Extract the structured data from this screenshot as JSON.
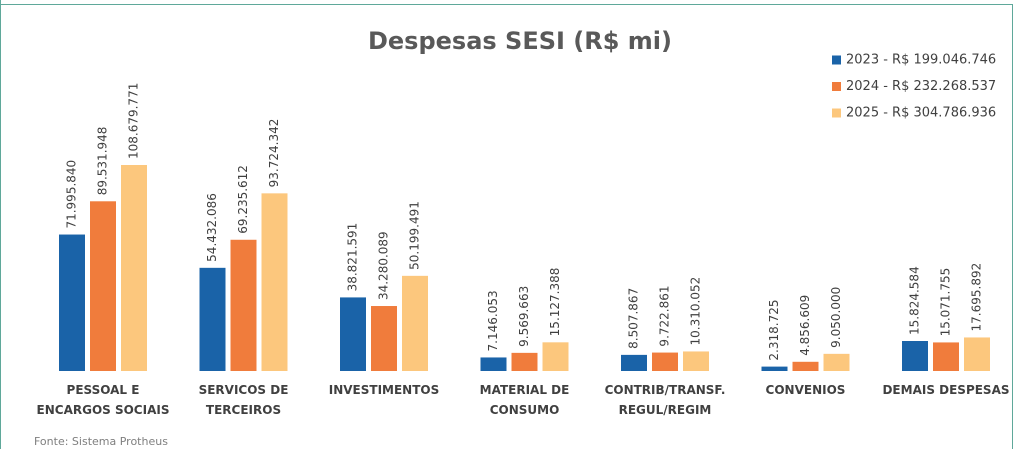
{
  "chart_data": {
    "type": "bar",
    "title": "Despesas SESI (R$ mi)",
    "source": "Fonte: Sistema Protheus",
    "categories": [
      "PESSOAL E\nENCARGOS SOCIAIS",
      "SERVICOS  DE\nTERCEIROS",
      "INVESTIMENTOS",
      "MATERIAL DE\nCONSUMO",
      "CONTRIB/TRANSF.\nREGUL/REGIM",
      "CONVENIOS",
      "DEMAIS DESPESAS"
    ],
    "legend": "top-right",
    "series": [
      {
        "name": "2023 - R$ 199.046.746",
        "color": "#1a63a8",
        "values": [
          71995840,
          54432086,
          38821591,
          7146053,
          8507867,
          2318725,
          15824584
        ],
        "value_labels": [
          "71.995.840",
          "54.432.086",
          "38.821.591",
          "7.146.053",
          "8.507.867",
          "2.318.725",
          "15.824.584"
        ]
      },
      {
        "name": "2024 - R$ 232.268.537",
        "color": "#f07c3c",
        "values": [
          89531948,
          69235612,
          34280089,
          9569663,
          9722861,
          4856609,
          15071755
        ],
        "value_labels": [
          "89.531.948",
          "69.235.612",
          "34.280.089",
          "9.569.663",
          "9.722.861",
          "4.856.609",
          "15.071.755"
        ]
      },
      {
        "name": "2025 - R$ 304.786.936",
        "color": "#fcc77d",
        "values": [
          108679771,
          93724342,
          50199491,
          15127388,
          10310052,
          9050000,
          17695892
        ],
        "value_labels": [
          "108.679.771",
          "93.724.342",
          "50.199.491",
          "15.127.388",
          "10.310.052",
          "9.050.000",
          "17.695.892"
        ]
      }
    ]
  }
}
